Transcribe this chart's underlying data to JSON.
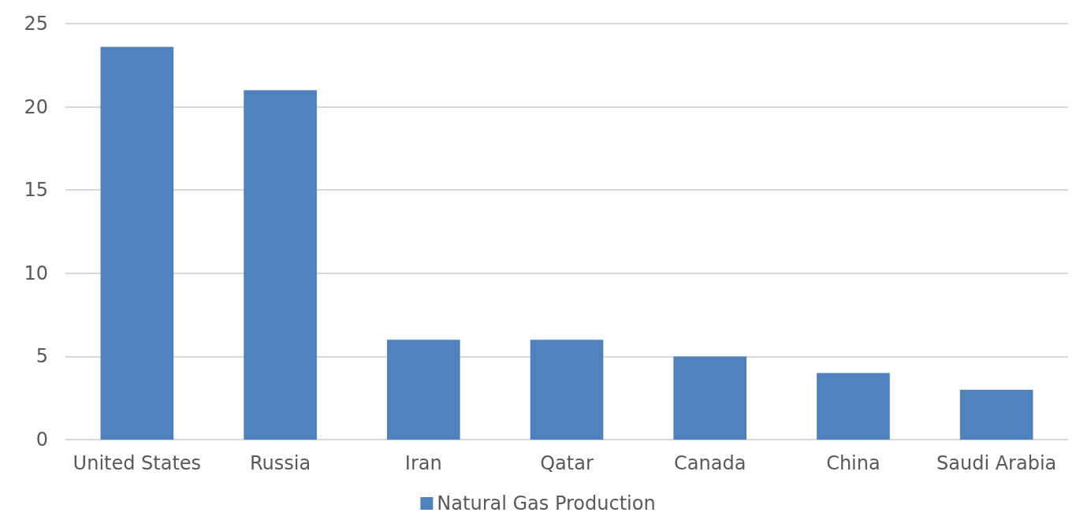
{
  "chart_data": {
    "type": "bar",
    "categories": [
      "United States",
      "Russia",
      "Iran",
      "Qatar",
      "Canada",
      "China",
      "Saudi Arabia"
    ],
    "series": [
      {
        "name": "Natural Gas Production",
        "color": "#4f81bd",
        "values": [
          23.6,
          21.0,
          6,
          6,
          5,
          4,
          3
        ]
      }
    ],
    "ylim": [
      0,
      25
    ],
    "yticks": [
      0,
      5,
      10,
      15,
      20,
      25
    ],
    "grid": "y",
    "legend": "bottom"
  }
}
